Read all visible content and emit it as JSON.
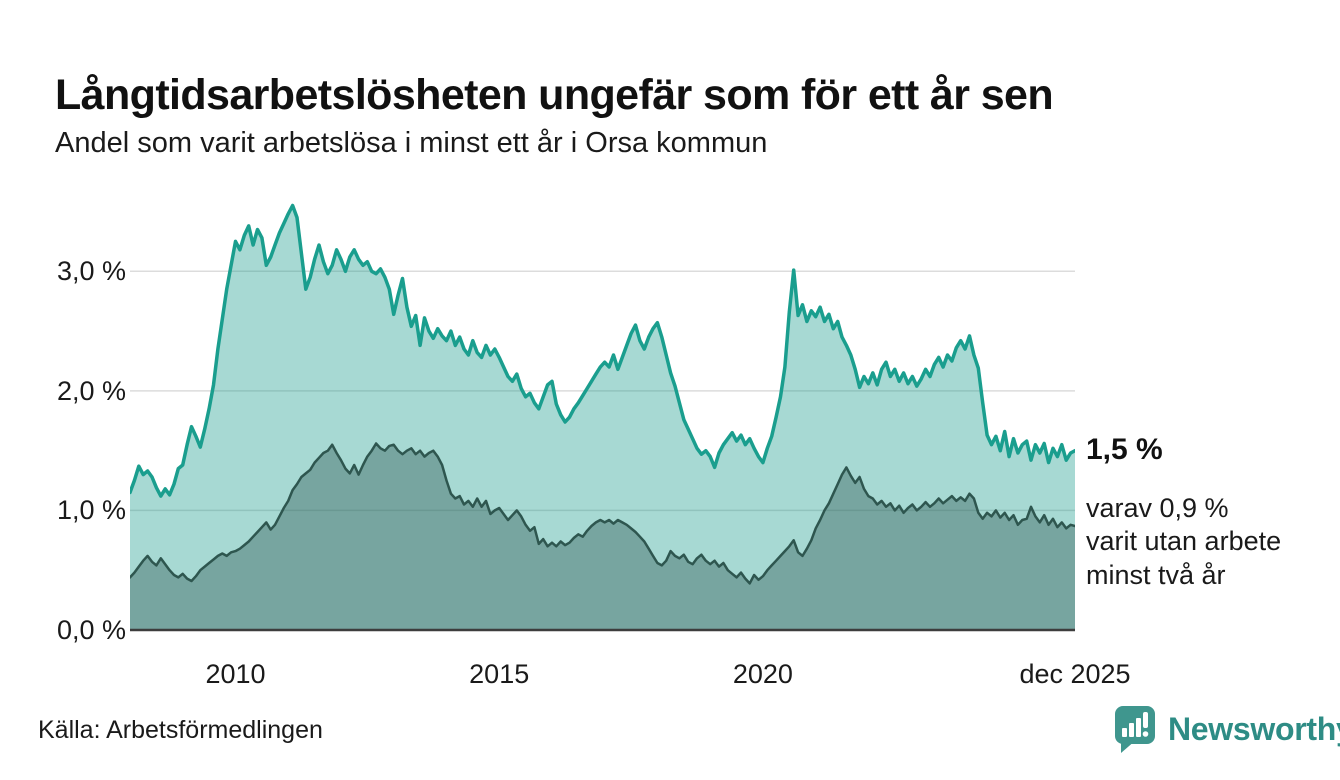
{
  "header": {
    "title": "Långtidsarbetslösheten ungefär som för ett år sen",
    "subtitle": "Andel som varit arbetslösa i minst ett år i Orsa kommun"
  },
  "annotations": {
    "latest_value": "1,5 %",
    "secondary": "varav 0,9 %\nvarit utan arbete\nminst två år"
  },
  "footer": {
    "source": "Källa: Arbetsförmedlingen",
    "brand": "Newsworthy"
  },
  "colors": {
    "line_1yr": "#1a9e8e",
    "fill_1yr": "rgba(23,154,139,0.38)",
    "line_2yr": "#2e564f",
    "fill_2yr": "rgba(42,82,75,0.38)",
    "gridline": "#dcdcdc",
    "baseline": "#3d3d3d",
    "brand_teal": "#2e8c85",
    "logo_bubble": "#3f968e"
  },
  "chart_data": {
    "type": "area",
    "title": "Långtidsarbetslösheten ungefär som för ett år sen",
    "subtitle": "Andel som varit arbetslösa i minst ett år i Orsa kommun",
    "unit": "%",
    "grid": true,
    "legend_position": "none",
    "xlim": [
      2008.0,
      2025.9167
    ],
    "ylim": [
      0,
      3.68
    ],
    "x_resolution": "monthly",
    "yticks": [
      {
        "label": "3,0 %",
        "value": 3.0
      },
      {
        "label": "2,0 %",
        "value": 2.0
      },
      {
        "label": "1,0 %",
        "value": 1.0
      },
      {
        "label": "0,0 %",
        "value": 0.0
      }
    ],
    "xticks": [
      {
        "label": "2010",
        "year": 2010.0
      },
      {
        "label": "2015",
        "year": 2015.0
      },
      {
        "label": "2020",
        "year": 2020.0
      },
      {
        "label": "dec 2025",
        "year": 2025.9167
      }
    ],
    "series": [
      {
        "name": "Andel arbetslösa minst ett år",
        "latest_label": "1,5 %",
        "values": [
          1.15,
          1.25,
          1.37,
          1.3,
          1.33,
          1.28,
          1.19,
          1.12,
          1.18,
          1.13,
          1.22,
          1.35,
          1.38,
          1.55,
          1.7,
          1.62,
          1.53,
          1.68,
          1.85,
          2.05,
          2.35,
          2.6,
          2.85,
          3.05,
          3.25,
          3.18,
          3.3,
          3.38,
          3.22,
          3.35,
          3.28,
          3.05,
          3.12,
          3.22,
          3.32,
          3.4,
          3.48,
          3.55,
          3.45,
          3.15,
          2.85,
          2.95,
          3.1,
          3.22,
          3.08,
          2.98,
          3.05,
          3.18,
          3.1,
          3.0,
          3.12,
          3.18,
          3.1,
          3.05,
          3.08,
          3.0,
          2.98,
          3.02,
          2.95,
          2.85,
          2.64,
          2.8,
          2.94,
          2.7,
          2.54,
          2.63,
          2.38,
          2.61,
          2.5,
          2.44,
          2.52,
          2.46,
          2.42,
          2.5,
          2.38,
          2.45,
          2.35,
          2.3,
          2.42,
          2.32,
          2.28,
          2.38,
          2.3,
          2.35,
          2.28,
          2.2,
          2.12,
          2.08,
          2.14,
          2.02,
          1.95,
          1.98,
          1.9,
          1.85,
          1.95,
          2.05,
          2.08,
          1.89,
          1.8,
          1.74,
          1.78,
          1.85,
          1.9,
          1.96,
          2.02,
          2.08,
          2.14,
          2.2,
          2.24,
          2.2,
          2.3,
          2.18,
          2.28,
          2.38,
          2.48,
          2.55,
          2.42,
          2.35,
          2.45,
          2.52,
          2.57,
          2.45,
          2.3,
          2.15,
          2.04,
          1.9,
          1.76,
          1.68,
          1.6,
          1.52,
          1.47,
          1.5,
          1.45,
          1.36,
          1.48,
          1.55,
          1.6,
          1.65,
          1.58,
          1.63,
          1.55,
          1.6,
          1.52,
          1.45,
          1.4,
          1.52,
          1.62,
          1.78,
          1.95,
          2.2,
          2.66,
          3.01,
          2.63,
          2.72,
          2.58,
          2.67,
          2.62,
          2.7,
          2.58,
          2.64,
          2.52,
          2.58,
          2.45,
          2.38,
          2.3,
          2.18,
          2.03,
          2.12,
          2.06,
          2.15,
          2.05,
          2.18,
          2.24,
          2.12,
          2.18,
          2.08,
          2.15,
          2.06,
          2.12,
          2.04,
          2.1,
          2.18,
          2.12,
          2.22,
          2.28,
          2.2,
          2.3,
          2.25,
          2.36,
          2.42,
          2.35,
          2.46,
          2.3,
          2.19,
          1.9,
          1.63,
          1.55,
          1.62,
          1.5,
          1.66,
          1.45,
          1.6,
          1.48,
          1.55,
          1.58,
          1.42,
          1.55,
          1.48,
          1.56,
          1.4,
          1.52,
          1.45,
          1.55,
          1.42,
          1.48,
          1.5
        ]
      },
      {
        "name": "Andel arbetslösa minst två år",
        "latest_label": "0,9 %",
        "values": [
          0.44,
          0.48,
          0.53,
          0.58,
          0.62,
          0.57,
          0.54,
          0.6,
          0.55,
          0.5,
          0.46,
          0.44,
          0.47,
          0.43,
          0.41,
          0.45,
          0.5,
          0.53,
          0.56,
          0.59,
          0.62,
          0.64,
          0.62,
          0.65,
          0.66,
          0.68,
          0.71,
          0.74,
          0.78,
          0.82,
          0.86,
          0.9,
          0.84,
          0.88,
          0.95,
          1.02,
          1.08,
          1.17,
          1.22,
          1.28,
          1.31,
          1.34,
          1.4,
          1.44,
          1.48,
          1.5,
          1.55,
          1.48,
          1.42,
          1.35,
          1.31,
          1.38,
          1.3,
          1.38,
          1.45,
          1.5,
          1.56,
          1.52,
          1.5,
          1.54,
          1.55,
          1.5,
          1.47,
          1.5,
          1.52,
          1.47,
          1.5,
          1.45,
          1.48,
          1.5,
          1.45,
          1.38,
          1.25,
          1.14,
          1.1,
          1.12,
          1.05,
          1.08,
          1.03,
          1.1,
          1.03,
          1.08,
          0.97,
          1.0,
          1.02,
          0.97,
          0.92,
          0.96,
          1.0,
          0.95,
          0.88,
          0.83,
          0.86,
          0.72,
          0.76,
          0.7,
          0.73,
          0.7,
          0.74,
          0.71,
          0.73,
          0.77,
          0.8,
          0.78,
          0.83,
          0.87,
          0.9,
          0.92,
          0.9,
          0.92,
          0.89,
          0.92,
          0.9,
          0.88,
          0.85,
          0.82,
          0.78,
          0.74,
          0.68,
          0.62,
          0.56,
          0.54,
          0.58,
          0.66,
          0.62,
          0.6,
          0.63,
          0.57,
          0.55,
          0.6,
          0.63,
          0.58,
          0.55,
          0.58,
          0.53,
          0.56,
          0.5,
          0.47,
          0.44,
          0.48,
          0.43,
          0.39,
          0.46,
          0.42,
          0.45,
          0.5,
          0.54,
          0.58,
          0.62,
          0.66,
          0.7,
          0.75,
          0.65,
          0.62,
          0.68,
          0.75,
          0.85,
          0.92,
          1.0,
          1.06,
          1.14,
          1.22,
          1.3,
          1.36,
          1.29,
          1.23,
          1.28,
          1.18,
          1.12,
          1.1,
          1.05,
          1.08,
          1.03,
          1.06,
          1.0,
          1.04,
          0.98,
          1.02,
          1.05,
          1.0,
          1.03,
          1.07,
          1.03,
          1.06,
          1.1,
          1.06,
          1.09,
          1.12,
          1.08,
          1.11,
          1.08,
          1.14,
          1.1,
          0.98,
          0.93,
          0.98,
          0.95,
          1.0,
          0.94,
          0.98,
          0.92,
          0.96,
          0.88,
          0.92,
          0.93,
          1.03,
          0.95,
          0.9,
          0.96,
          0.88,
          0.93,
          0.86,
          0.9,
          0.85,
          0.88,
          0.87
        ]
      }
    ]
  }
}
